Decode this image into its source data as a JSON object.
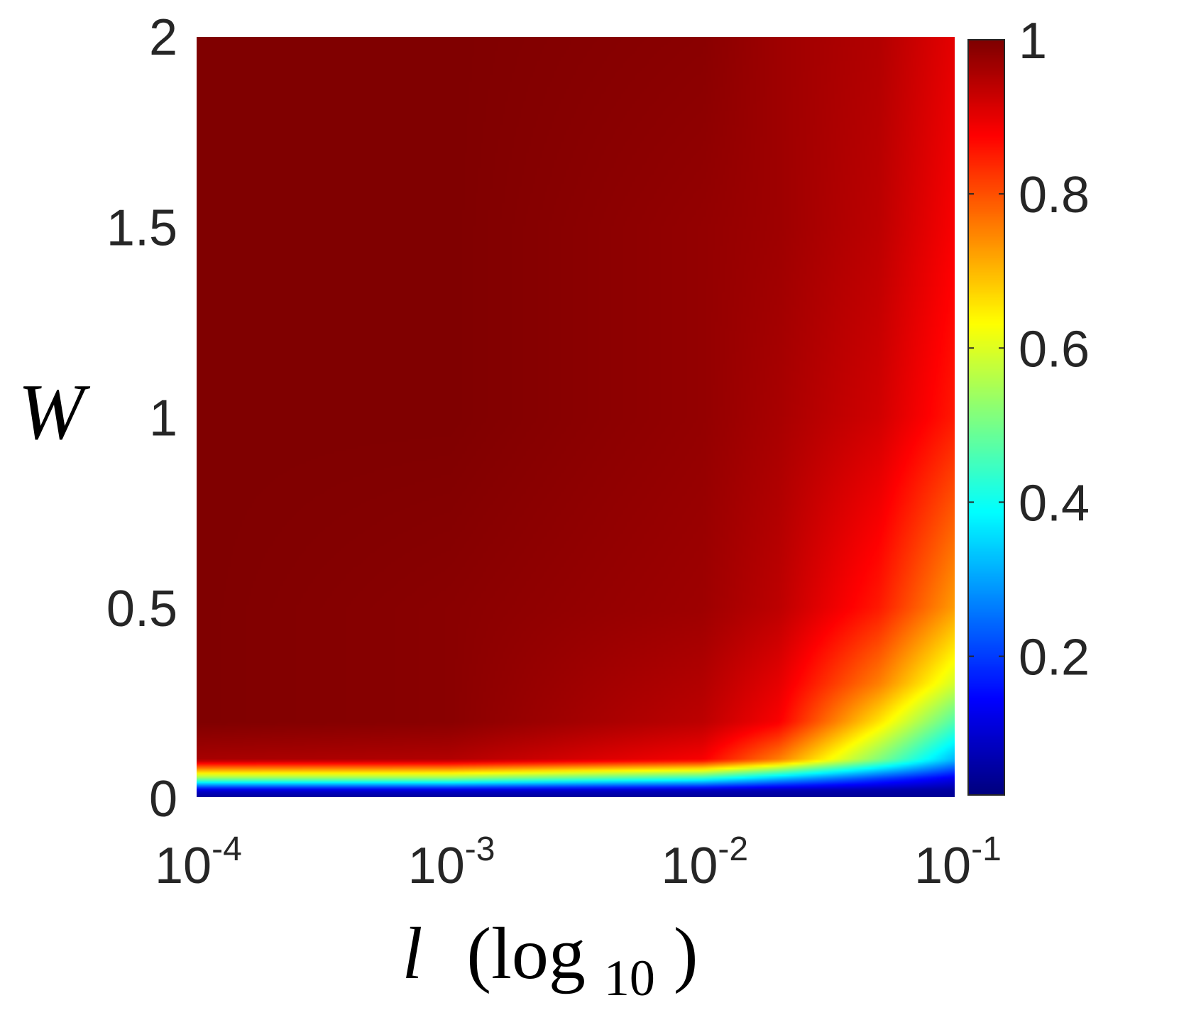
{
  "chart_data": {
    "type": "heatmap",
    "x_scale": "log",
    "x_range": [
      0.0001,
      0.1
    ],
    "y_range": [
      0,
      2
    ],
    "x_ticks": [
      {
        "base": "10",
        "exp": "-4",
        "value": 0.0001
      },
      {
        "base": "10",
        "exp": "-3",
        "value": 0.001
      },
      {
        "base": "10",
        "exp": "-2",
        "value": 0.01
      },
      {
        "base": "10",
        "exp": "-1",
        "value": 0.1
      }
    ],
    "y_ticks": [
      {
        "label": "0",
        "value": 0
      },
      {
        "label": "0.5",
        "value": 0.5
      },
      {
        "label": "1",
        "value": 1
      },
      {
        "label": "1.5",
        "value": 1.5
      },
      {
        "label": "2",
        "value": 2
      }
    ],
    "xlabel": {
      "var": "l",
      "open": "(log",
      "sub": "10",
      "close": ")"
    },
    "ylabel": "W",
    "colormap": "jet",
    "colorbar": {
      "range": [
        0.02,
        1
      ],
      "ticks": [
        {
          "label": "0.2",
          "value": 0.2
        },
        {
          "label": "0.4",
          "value": 0.4
        },
        {
          "label": "0.6",
          "value": 0.6
        },
        {
          "label": "0.8",
          "value": 0.8
        },
        {
          "label": "1",
          "value": 1
        }
      ]
    },
    "grid": false,
    "sampled_values": {
      "x": [
        0.0001,
        0.001,
        0.01,
        0.02,
        0.05,
        0.1
      ],
      "y": [
        0,
        0.02,
        0.05,
        0.1,
        0.2,
        0.3,
        0.5,
        1,
        1.5,
        2
      ],
      "z": [
        [
          0.02,
          0.02,
          0.02,
          0.02,
          0.02,
          0.02
        ],
        [
          0.08,
          0.08,
          0.06,
          0.05,
          0.04,
          0.03
        ],
        [
          0.5,
          0.5,
          0.4,
          0.3,
          0.18,
          0.1
        ],
        [
          0.96,
          0.95,
          0.88,
          0.75,
          0.5,
          0.3
        ],
        [
          1.0,
          0.99,
          0.94,
          0.88,
          0.65,
          0.45
        ],
        [
          1.0,
          0.99,
          0.95,
          0.9,
          0.75,
          0.58
        ],
        [
          1.0,
          0.99,
          0.97,
          0.94,
          0.85,
          0.72
        ],
        [
          1.0,
          1.0,
          0.98,
          0.96,
          0.92,
          0.85
        ],
        [
          1.0,
          1.0,
          0.98,
          0.97,
          0.94,
          0.88
        ],
        [
          1.0,
          1.0,
          0.99,
          0.97,
          0.95,
          0.9
        ]
      ]
    }
  }
}
